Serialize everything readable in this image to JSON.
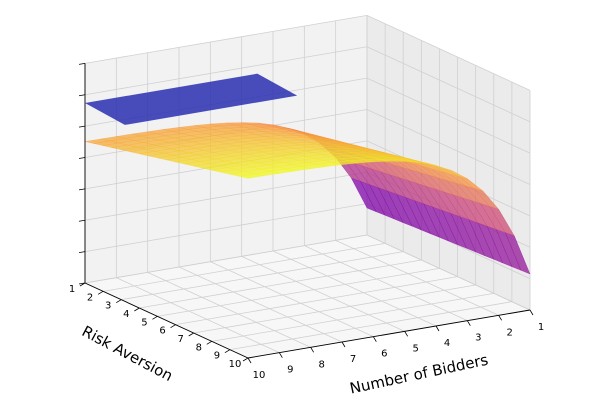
{
  "chart_data": {
    "type": "surface3d",
    "title": "",
    "zlabel": "",
    "x_axis": {
      "label": "Risk Aversion",
      "ticks": [
        "1",
        "2",
        "3",
        "4",
        "5",
        "6",
        "7",
        "8",
        "9",
        "10"
      ],
      "range": [
        1,
        10
      ]
    },
    "y_axis": {
      "label": "Number of Bidders",
      "ticks": [
        "1",
        "2",
        "3",
        "4",
        "5",
        "6",
        "7",
        "8",
        "9",
        "10"
      ],
      "range": [
        1,
        10
      ]
    },
    "z_axis": {
      "tick_labels_shown": false,
      "tick_count": 8
    },
    "grid": true,
    "surfaces": [
      {
        "colormap": "plasma",
        "colors": [
          "#0d0887",
          "#7e03a8",
          "#cc4778",
          "#f89540",
          "#f0f921"
        ],
        "alpha": 0.7,
        "description_values": {
          "x": [
            1,
            2,
            3,
            4,
            5,
            6,
            7,
            8,
            9,
            10
          ],
          "y": [
            1,
            2,
            3,
            4,
            5,
            6,
            7,
            8,
            9,
            10
          ],
          "z_at_y1": [
            0.0,
            0.1,
            0.2,
            0.3,
            0.38,
            0.45,
            0.5,
            0.55,
            0.58,
            0.6
          ],
          "z_at_y10": [
            0.97,
            0.98,
            0.985,
            0.99,
            0.99,
            0.995,
            0.995,
            1.0,
            1.0,
            1.0
          ]
        }
      },
      {
        "color": "#2a2fb0",
        "alpha": 0.85,
        "description_values": {
          "note": "flat plane near the top along Risk Aversion 1-3"
        }
      }
    ]
  }
}
